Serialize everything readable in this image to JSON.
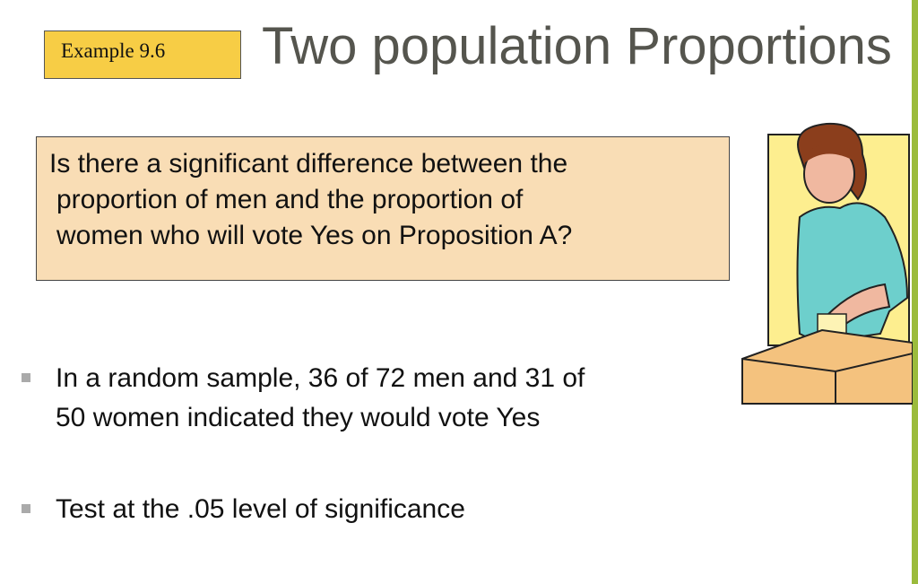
{
  "example_tag": "Example 9.6",
  "title": "Two population Proportions",
  "question": [
    "Is there a significant difference between the",
    "proportion of men and the proportion of",
    "women who will vote Yes on Proposition A?"
  ],
  "bullets": [
    {
      "lines": [
        "In a random sample, 36 of 72 men and 31 of",
        "50 women indicated they would vote Yes"
      ]
    },
    {
      "lines": [
        "Test at the .05 level of significance"
      ]
    }
  ],
  "colors": {
    "accent_bar": "#9bbb3c",
    "tag_bg": "#f7cd45",
    "question_bg": "#f9ddb5",
    "title": "#55554e"
  },
  "illustration": "woman-voting-ballot-box"
}
